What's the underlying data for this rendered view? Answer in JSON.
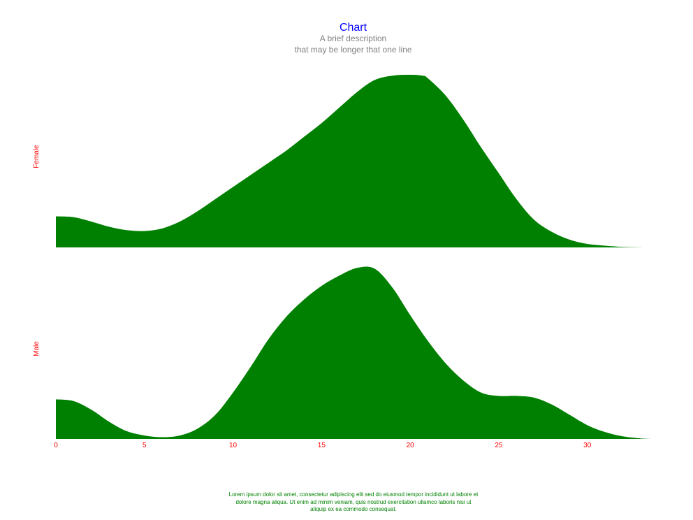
{
  "chart_data": {
    "type": "area",
    "title": "Chart",
    "subtitle": [
      "A brief description",
      "that may be longer that one line"
    ],
    "footer": "Lorem ipsum dolor sit amet, consectetur adipiscing elit sed do eiusmod tempor incididunt ut labore et dolore magna aliqua. Ut enim ad minim veniam, quis nostrud exercitation ullamco laboris nisi ut aliquip ex ea commodo consequat.",
    "xlabel": "",
    "ylabel": "",
    "xlim": [
      0,
      35
    ],
    "xticks": [
      "0",
      "5",
      "10",
      "15",
      "20",
      "25",
      "30"
    ],
    "grid": false,
    "legend": "none",
    "colors": {
      "fill": "#008000",
      "title": "#0000ff",
      "subtitle": "#808080",
      "axis_text": "#ff0000",
      "footer": "#008000"
    },
    "series": [
      {
        "name": "Female",
        "x": [
          0,
          1,
          2,
          3,
          4,
          5,
          6,
          7,
          8,
          9,
          10,
          11,
          12,
          13,
          14,
          15,
          16,
          17,
          18,
          19,
          20,
          20.7,
          21,
          22,
          23,
          24,
          25,
          26,
          27,
          28,
          29,
          30,
          31,
          32,
          33.2
        ],
        "y": [
          0.18,
          0.175,
          0.15,
          0.12,
          0.1,
          0.095,
          0.11,
          0.15,
          0.21,
          0.28,
          0.35,
          0.42,
          0.49,
          0.56,
          0.64,
          0.72,
          0.81,
          0.9,
          0.97,
          0.995,
          1.0,
          0.995,
          0.98,
          0.88,
          0.74,
          0.58,
          0.43,
          0.28,
          0.16,
          0.09,
          0.045,
          0.02,
          0.01,
          0.003,
          0.0
        ]
      },
      {
        "name": "Male",
        "x": [
          0,
          1,
          2,
          3,
          4,
          5,
          6,
          7,
          8,
          9,
          10,
          11,
          12,
          13,
          14,
          15,
          16,
          17,
          18,
          19,
          20,
          21,
          22,
          23,
          24,
          25,
          26,
          27,
          28,
          29,
          30,
          31,
          32,
          33,
          33.6
        ],
        "y": [
          0.23,
          0.22,
          0.17,
          0.1,
          0.045,
          0.02,
          0.01,
          0.02,
          0.06,
          0.14,
          0.27,
          0.42,
          0.58,
          0.71,
          0.81,
          0.89,
          0.95,
          0.995,
          0.99,
          0.88,
          0.72,
          0.57,
          0.44,
          0.34,
          0.27,
          0.25,
          0.25,
          0.24,
          0.2,
          0.14,
          0.08,
          0.04,
          0.015,
          0.003,
          0.0
        ]
      }
    ]
  }
}
